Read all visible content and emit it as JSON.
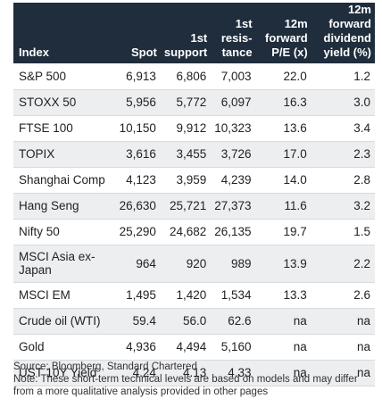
{
  "table": {
    "headers": [
      "Index",
      "Spot",
      "1st support",
      "1st resis-tance",
      "12m forward P/E (x)",
      "12m forward dividend yield (%)"
    ],
    "rows": [
      [
        "S&P 500",
        "6,913",
        "6,806",
        "7,003",
        "22.0",
        "1.2"
      ],
      [
        "STOXX 50",
        "5,956",
        "5,772",
        "6,097",
        "16.3",
        "3.0"
      ],
      [
        "FTSE 100",
        "10,150",
        "9,912",
        "10,323",
        "13.6",
        "3.4"
      ],
      [
        "TOPIX",
        "3,616",
        "3,455",
        "3,726",
        "17.0",
        "2.3"
      ],
      [
        "Shanghai Comp",
        "4,123",
        "3,959",
        "4,239",
        "14.0",
        "2.8"
      ],
      [
        "Hang Seng",
        "26,630",
        "25,721",
        "27,373",
        "11.6",
        "3.2"
      ],
      [
        "Nifty 50",
        "25,290",
        "24,682",
        "26,135",
        "19.7",
        "1.5"
      ],
      [
        "MSCI Asia ex-Japan",
        "964",
        "920",
        "989",
        "13.9",
        "2.2"
      ],
      [
        "MSCI EM",
        "1,495",
        "1,420",
        "1,534",
        "13.3",
        "2.6"
      ],
      [
        "Crude oil (WTI)",
        "59.4",
        "56.0",
        "62.6",
        "na",
        "na"
      ],
      [
        "Gold",
        "4,936",
        "4,494",
        "5,160",
        "na",
        "na"
      ],
      [
        "UST 10Y Yield",
        "4.24",
        "4.13",
        "4.33",
        "na",
        "na"
      ]
    ]
  },
  "footer": {
    "source": "Source: Bloomberg, Standard Chartered",
    "note": "Note: These short-term technical levels are based on models and may differ from a more qualitative analysis provided in other pages"
  },
  "colors": {
    "header_bg": "#1f2d3d",
    "stripe": "#eceef0"
  }
}
